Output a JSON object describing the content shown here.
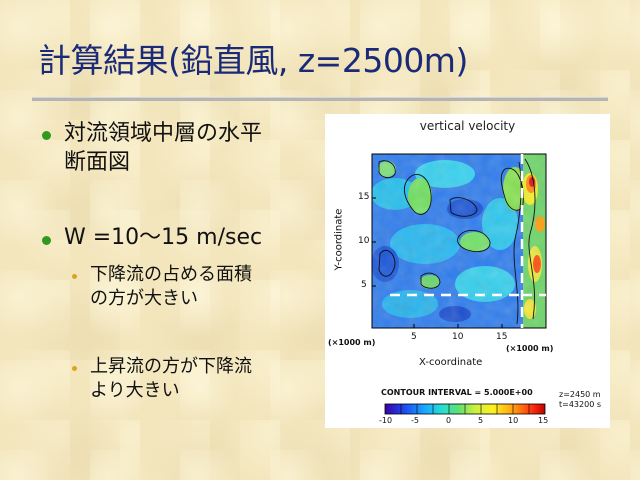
{
  "slide": {
    "title": "計算結果(鉛直風, z=2500m)",
    "bullets": [
      {
        "text": "対流領域中層の水平\n断面図"
      },
      {
        "text": "W =10～15 m/sec"
      }
    ],
    "sub_bullets": [
      {
        "text": "下降流の占める面積\nの方が大きい"
      },
      {
        "text": "上昇流の方が下降流\nより大きい"
      }
    ]
  },
  "figure": {
    "title": "vertical velocity",
    "y_axis_label": "Y-coordinate",
    "x_axis_label": "X-coordinate",
    "y_ticks": [
      "15",
      "10",
      "5"
    ],
    "x_ticks": [
      "5",
      "10",
      "15"
    ],
    "y_unit": "(×1000 m)",
    "x_unit": "(×1000 m)",
    "contour_interval": "CONTOUR INTERVAL = 5.000E+00",
    "z_info": "z=2450 m",
    "t_info": "t=43200 s",
    "colorbar_ticks": [
      "-10",
      "-5",
      "0",
      "5",
      "10",
      "15"
    ],
    "colorbar_colors": [
      "#3b00a8",
      "#2048f0",
      "#19a8ff",
      "#26e0d0",
      "#60e070",
      "#c8f040",
      "#fff020",
      "#ffa010",
      "#ff3010",
      "#c00000"
    ]
  }
}
